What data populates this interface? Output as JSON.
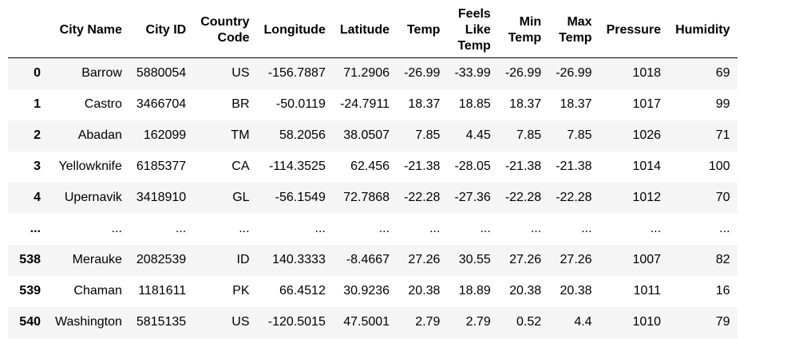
{
  "table": {
    "columns": [
      {
        "lines": [
          ""
        ]
      },
      {
        "lines": [
          "City Name"
        ]
      },
      {
        "lines": [
          "City ID"
        ]
      },
      {
        "lines": [
          "Country",
          "Code"
        ]
      },
      {
        "lines": [
          "Longitude"
        ]
      },
      {
        "lines": [
          "Latitude"
        ]
      },
      {
        "lines": [
          "Temp"
        ]
      },
      {
        "lines": [
          "Feels",
          "Like",
          "Temp"
        ]
      },
      {
        "lines": [
          "Min",
          "Temp"
        ]
      },
      {
        "lines": [
          "Max",
          "Temp"
        ]
      },
      {
        "lines": [
          "Pressure"
        ]
      },
      {
        "lines": [
          "Humidity"
        ]
      }
    ],
    "rows": [
      {
        "index": "0",
        "cells": [
          "Barrow",
          "5880054",
          "US",
          "-156.7887",
          "71.2906",
          "-26.99",
          "-33.99",
          "-26.99",
          "-26.99",
          "1018",
          "69"
        ]
      },
      {
        "index": "1",
        "cells": [
          "Castro",
          "3466704",
          "BR",
          "-50.0119",
          "-24.7911",
          "18.37",
          "18.85",
          "18.37",
          "18.37",
          "1017",
          "99"
        ]
      },
      {
        "index": "2",
        "cells": [
          "Abadan",
          "162099",
          "TM",
          "58.2056",
          "38.0507",
          "7.85",
          "4.45",
          "7.85",
          "7.85",
          "1026",
          "71"
        ]
      },
      {
        "index": "3",
        "cells": [
          "Yellowknife",
          "6185377",
          "CA",
          "-114.3525",
          "62.456",
          "-21.38",
          "-28.05",
          "-21.38",
          "-21.38",
          "1014",
          "100"
        ]
      },
      {
        "index": "4",
        "cells": [
          "Upernavik",
          "3418910",
          "GL",
          "-56.1549",
          "72.7868",
          "-22.28",
          "-27.36",
          "-22.28",
          "-22.28",
          "1012",
          "70"
        ]
      },
      {
        "index": "...",
        "cells": [
          "...",
          "...",
          "...",
          "...",
          "...",
          "...",
          "...",
          "...",
          "...",
          "...",
          "..."
        ]
      },
      {
        "index": "538",
        "cells": [
          "Merauke",
          "2082539",
          "ID",
          "140.3333",
          "-8.4667",
          "27.26",
          "30.55",
          "27.26",
          "27.26",
          "1007",
          "82"
        ]
      },
      {
        "index": "539",
        "cells": [
          "Chaman",
          "1181611",
          "PK",
          "66.4512",
          "30.9236",
          "20.38",
          "18.89",
          "20.38",
          "20.38",
          "1011",
          "16"
        ]
      },
      {
        "index": "540",
        "cells": [
          "Washington",
          "5815135",
          "US",
          "-120.5015",
          "47.5001",
          "2.79",
          "2.79",
          "0.52",
          "4.4",
          "1010",
          "79"
        ]
      }
    ]
  }
}
